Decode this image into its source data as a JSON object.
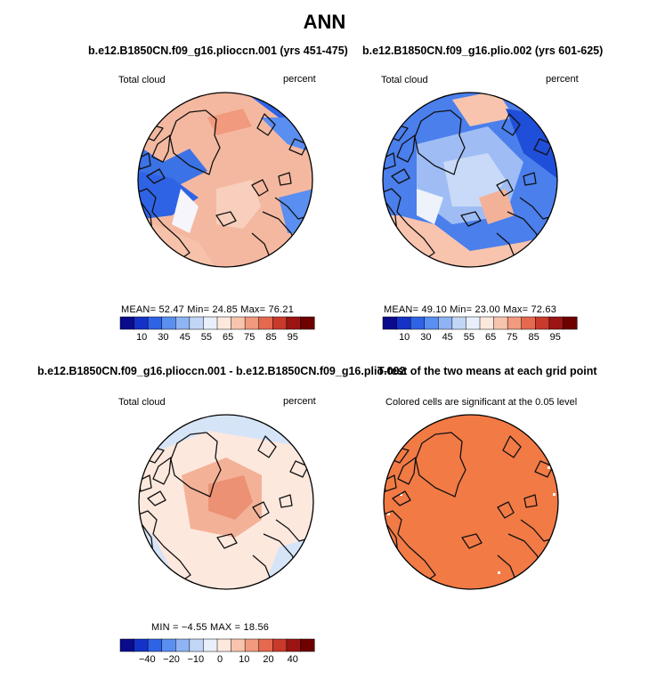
{
  "title": "ANN",
  "panels": [
    {
      "title": "b.e12.B1850CN.f09_g16.plioccn.001 (yrs 451-475)",
      "left_label": "Total cloud",
      "right_label": "percent",
      "stats": "MEAN=   52.47   Min=   24.85   Max=   76.21",
      "colorbar_labels": [
        "10",
        "30",
        "45",
        "55",
        "65",
        "75",
        "85",
        "95"
      ],
      "colorbar_colors": [
        "#0a0a8c",
        "#1432c8",
        "#2f63e6",
        "#5a8ef0",
        "#8fb3f3",
        "#c2d6f6",
        "#e8effb",
        "#fde8de",
        "#f8c4ae",
        "#f19a7e",
        "#e4694f",
        "#c93a2a",
        "#9c1414",
        "#6e0000"
      ]
    },
    {
      "title": "b.e12.B1850CN.f09_g16.plio.002 (yrs 601-625)",
      "left_label": "Total cloud",
      "right_label": "percent",
      "stats": "MEAN=   49.10   Min=   23.00   Max=   72.63",
      "colorbar_labels": [
        "10",
        "30",
        "45",
        "55",
        "65",
        "75",
        "85",
        "95"
      ],
      "colorbar_colors": [
        "#0a0a8c",
        "#1432c8",
        "#2f63e6",
        "#5a8ef0",
        "#8fb3f3",
        "#c2d6f6",
        "#e8effb",
        "#fde8de",
        "#f8c4ae",
        "#f19a7e",
        "#e4694f",
        "#c93a2a",
        "#9c1414",
        "#6e0000"
      ]
    },
    {
      "title": "b.e12.B1850CN.f09_g16.plioccn.001 - b.e12.B1850CN.f09_g16.plio.002",
      "left_label": "Total cloud",
      "right_label": "percent",
      "stats": "MIN =   −4.55  MAX =   18.56",
      "colorbar_labels": [
        "−40",
        "−20",
        "−10",
        "0",
        "10",
        "20",
        "40"
      ],
      "colorbar_colors": [
        "#0a0a8c",
        "#1432c8",
        "#2f63e6",
        "#5a8ef0",
        "#8fb3f3",
        "#c2d6f6",
        "#e8effb",
        "#fde8de",
        "#f8c4ae",
        "#f19a7e",
        "#e4694f",
        "#c93a2a",
        "#9c1414",
        "#6e0000"
      ]
    },
    {
      "title": "T-test of the two means at each grid point",
      "subtitle": "Colored cells are significant at the 0.05 level"
    }
  ]
}
